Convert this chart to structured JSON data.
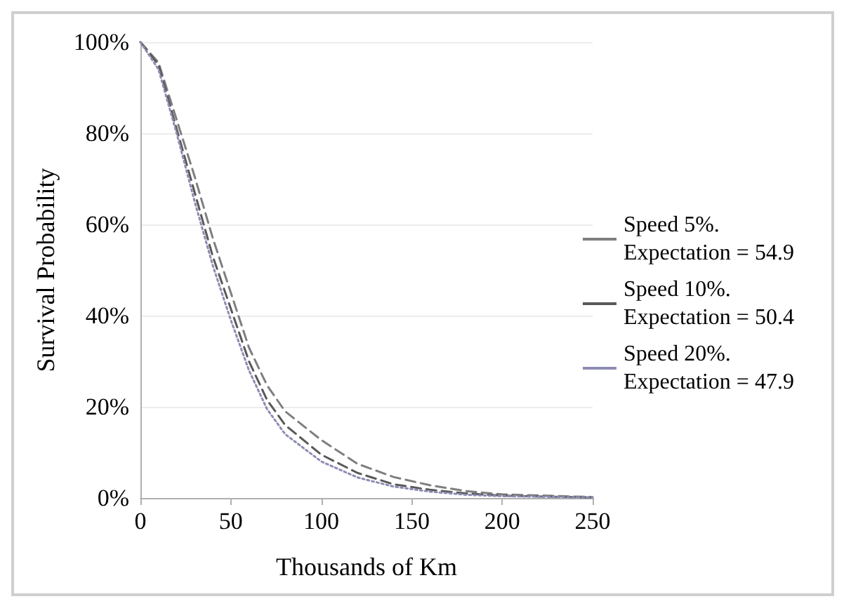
{
  "chart_data": {
    "type": "line",
    "xlabel": "Thousands of Km",
    "ylabel": "Survival Probability",
    "x": [
      0,
      10,
      20,
      30,
      40,
      50,
      60,
      70,
      80,
      100,
      120,
      140,
      160,
      180,
      200,
      250
    ],
    "series": [
      {
        "name": "Speed 5%. Expectation = 54.9",
        "color": "#7f7f7f",
        "line_style": "dashed",
        "values": [
          100,
          95.5,
          83,
          70.5,
          57,
          45,
          33,
          24.7,
          19,
          12.7,
          7.5,
          4.6,
          2.8,
          1.5,
          0.8,
          0.2
        ]
      },
      {
        "name": "Speed 10%. Expectation = 50.4",
        "color": "#595959",
        "line_style": "dashed",
        "values": [
          100,
          95,
          81,
          67,
          53,
          41.5,
          30,
          21.5,
          16,
          9.5,
          5.5,
          3,
          1.8,
          1,
          0.5,
          0.1
        ]
      },
      {
        "name": "Speed 20%. Expectation = 47.9",
        "color": "#8c8cb4",
        "line_style": "dotted",
        "values": [
          100,
          94,
          80,
          65,
          51,
          39,
          28,
          19.5,
          14,
          8,
          4.5,
          2.5,
          1.4,
          0.7,
          0.4,
          0.1
        ]
      }
    ],
    "xlim": [
      0,
      250
    ],
    "xticks": [
      0,
      50,
      100,
      150,
      200,
      250
    ],
    "ylim": [
      0,
      100
    ],
    "yticks": [
      {
        "value": 0,
        "label": "0%"
      },
      {
        "value": 20,
        "label": "20%"
      },
      {
        "value": 40,
        "label": "40%"
      },
      {
        "value": 60,
        "label": "60%"
      },
      {
        "value": 80,
        "label": "80%"
      },
      {
        "value": 100,
        "label": "100%"
      }
    ],
    "grid": "y",
    "legend": "right",
    "marker": "none"
  }
}
